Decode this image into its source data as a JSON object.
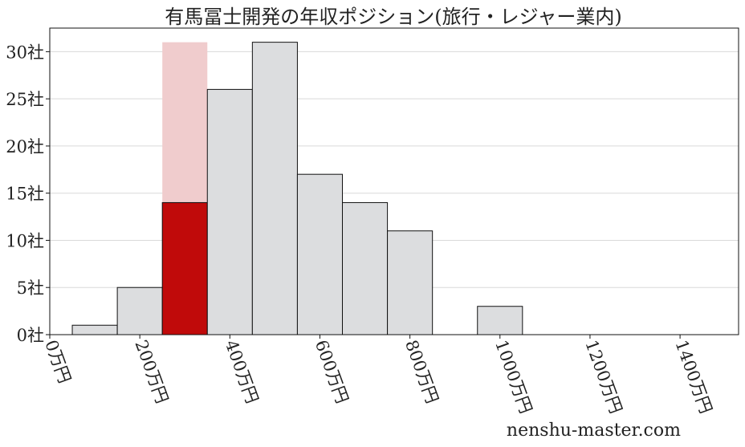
{
  "chart_data": {
    "type": "bar",
    "title": "有馬冨士開発の年収ポジション(旅行・レジャー業内)",
    "x_unit": "万円",
    "y_unit": "社",
    "bin_width": 100,
    "xlim": [
      0,
      1530
    ],
    "ylim": [
      0,
      32.5
    ],
    "xticks": [
      0,
      200,
      400,
      600,
      800,
      1000,
      1200,
      1400
    ],
    "xtick_labels": [
      "0万円",
      "200万円",
      "400万円",
      "600万円",
      "800万円",
      "1000万円",
      "1200万円",
      "1400万円"
    ],
    "yticks": [
      0,
      5,
      10,
      15,
      20,
      25,
      30
    ],
    "ytick_labels": [
      "0社",
      "5社",
      "10社",
      "15社",
      "20社",
      "25社",
      "30社"
    ],
    "grid": "horizontal",
    "series": [
      {
        "bins": [
          {
            "x": 100,
            "value": 1
          },
          {
            "x": 200,
            "value": 5
          },
          {
            "x": 300,
            "value": 14,
            "highlight": true
          },
          {
            "x": 400,
            "value": 26
          },
          {
            "x": 500,
            "value": 31
          },
          {
            "x": 600,
            "value": 17
          },
          {
            "x": 700,
            "value": 14
          },
          {
            "x": 800,
            "value": 11
          },
          {
            "x": 1000,
            "value": 3
          }
        ]
      }
    ],
    "highlight_background": {
      "x": 300,
      "value": 31
    },
    "colors": {
      "bar_fill": "#dcdddf",
      "bar_edge": "#111111",
      "highlight": "#c00a0a",
      "highlight_background": "#f0cccd",
      "grid": "#d9d9d9"
    }
  },
  "watermark": "nenshu-master.com"
}
